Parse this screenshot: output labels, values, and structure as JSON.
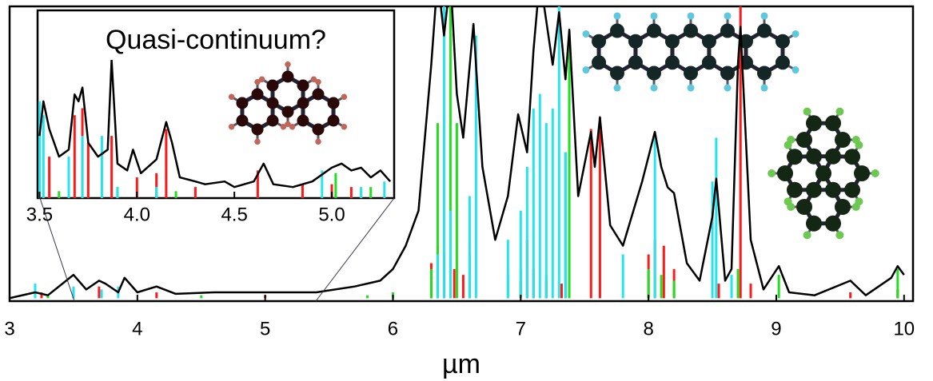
{
  "chart_data": [
    {
      "type": "line",
      "x_label": "µm",
      "xlim": [
        3,
        10.07
      ],
      "ylim": [
        -1,
        100
      ],
      "xticks": [
        3,
        4,
        5,
        6,
        7,
        8,
        9,
        10
      ],
      "series": [
        {
          "color": "#ff1a1a",
          "kind": "stick",
          "x": [
            3.25,
            3.5,
            3.7,
            4.15,
            5.0,
            6.3,
            6.35,
            6.4,
            6.48,
            6.55,
            7.0,
            7.05,
            7.1,
            7.2,
            7.32,
            7.55,
            7.62,
            8.0,
            8.05,
            8.12,
            8.2,
            8.55,
            8.72,
            8.8,
            9.58,
            9.95
          ],
          "values": [
            2,
            3,
            4,
            2,
            1,
            12,
            18,
            15,
            10,
            8,
            6,
            20,
            10,
            6,
            5,
            58,
            62,
            15,
            20,
            18,
            10,
            5,
            100,
            5,
            2,
            3
          ]
        },
        {
          "color": "#22dd22",
          "kind": "stick",
          "x": [
            3.3,
            4.5,
            5.8,
            6.0,
            6.3,
            6.35,
            6.45,
            6.5,
            6.6,
            6.9,
            7.0,
            7.2,
            7.35,
            7.38,
            8.0,
            8.1,
            8.2,
            8.7,
            9.02,
            9.95
          ],
          "values": [
            1,
            1,
            1,
            2,
            10,
            60,
            100,
            60,
            15,
            8,
            10,
            8,
            50,
            90,
            10,
            8,
            6,
            10,
            8,
            10
          ]
        },
        {
          "color": "#22e5f0",
          "kind": "stick",
          "x": [
            3.2,
            3.5,
            3.72,
            3.85,
            6.35,
            6.4,
            6.45,
            6.6,
            6.65,
            6.9,
            7.0,
            7.05,
            7.1,
            7.15,
            7.2,
            7.25,
            7.3,
            7.35,
            7.8,
            8.05,
            8.5,
            8.53,
            8.65
          ],
          "values": [
            5,
            4,
            3,
            4,
            15,
            100,
            30,
            35,
            90,
            20,
            30,
            45,
            65,
            70,
            60,
            65,
            100,
            50,
            15,
            55,
            40,
            55,
            8
          ]
        },
        {
          "color": "#000000",
          "kind": "line",
          "x": [
            3.0,
            3.2,
            3.3,
            3.5,
            3.6,
            3.7,
            3.75,
            3.85,
            3.9,
            4.0,
            4.15,
            4.3,
            4.6,
            5.0,
            5.4,
            5.7,
            5.9,
            6.0,
            6.1,
            6.2,
            6.3,
            6.35,
            6.4,
            6.45,
            6.5,
            6.55,
            6.63,
            6.7,
            6.8,
            6.9,
            6.98,
            7.05,
            7.1,
            7.15,
            7.2,
            7.25,
            7.3,
            7.35,
            7.38,
            7.45,
            7.55,
            7.58,
            7.62,
            7.7,
            7.8,
            7.95,
            8.05,
            8.1,
            8.15,
            8.2,
            8.3,
            8.4,
            8.5,
            8.53,
            8.6,
            8.65,
            8.7,
            8.72,
            8.8,
            8.9,
            9.02,
            9.1,
            9.3,
            9.58,
            9.7,
            9.9,
            9.95,
            10.0
          ],
          "values": [
            0,
            2,
            1,
            8,
            3,
            6,
            5,
            2,
            7,
            2,
            4,
            1.5,
            2,
            2,
            2,
            4,
            6,
            10,
            18,
            30,
            80,
            110,
            90,
            110,
            70,
            55,
            94,
            45,
            20,
            35,
            63,
            50,
            85,
            110,
            95,
            80,
            98,
            75,
            92,
            35,
            57,
            45,
            62,
            25,
            18,
            40,
            57,
            45,
            38,
            36,
            12,
            6,
            28,
            41,
            6,
            10,
            80,
            93,
            20,
            3,
            11,
            2,
            1,
            6,
            1,
            7,
            11,
            8
          ]
        }
      ]
    },
    {
      "type": "line",
      "title": "Quasi-continuum?",
      "xlim": [
        3.49,
        5.32
      ],
      "ylim": [
        0,
        100
      ],
      "xticks": [
        3.5,
        {
          "value": 4,
          "label": "4.0"
        },
        4.5,
        {
          "value": 5,
          "label": "5.0"
        }
      ],
      "series": [
        {
          "color": "#ff1a1a",
          "kind": "stick",
          "x": [
            3.55,
            3.68,
            3.72,
            3.75,
            3.87,
            4.0,
            4.1,
            4.15,
            4.3,
            4.62,
            4.85,
            5.0,
            5.1
          ],
          "values": [
            30,
            60,
            65,
            40,
            45,
            15,
            18,
            50,
            8,
            20,
            10,
            10,
            8
          ]
        },
        {
          "color": "#22dd22",
          "kind": "stick",
          "x": [
            3.6,
            3.9,
            4.2,
            5.02,
            5.2
          ],
          "values": [
            5,
            8,
            5,
            18,
            8
          ]
        },
        {
          "color": "#22e5f0",
          "kind": "stick",
          "x": [
            3.5,
            3.52,
            3.65,
            3.72,
            3.82,
            3.9,
            4.1,
            4.95,
            5.15,
            5.27
          ],
          "values": [
            70,
            60,
            30,
            45,
            45,
            8,
            8,
            20,
            8,
            12
          ]
        },
        {
          "color": "#000000",
          "kind": "line",
          "x": [
            3.5,
            3.52,
            3.55,
            3.6,
            3.65,
            3.68,
            3.7,
            3.72,
            3.75,
            3.8,
            3.85,
            3.87,
            3.9,
            3.95,
            3.98,
            4.02,
            4.1,
            4.15,
            4.18,
            4.22,
            4.3,
            4.35,
            4.45,
            4.5,
            4.6,
            4.65,
            4.7,
            4.8,
            4.9,
            5.0,
            5.05,
            5.1,
            5.15,
            5.2,
            5.25,
            5.3
          ],
          "values": [
            45,
            70,
            50,
            30,
            35,
            75,
            70,
            80,
            40,
            30,
            35,
            100,
            25,
            20,
            35,
            18,
            28,
            55,
            40,
            15,
            12,
            10,
            12,
            8,
            12,
            25,
            10,
            8,
            12,
            22,
            25,
            20,
            22,
            15,
            20,
            12
          ]
        }
      ]
    }
  ]
}
